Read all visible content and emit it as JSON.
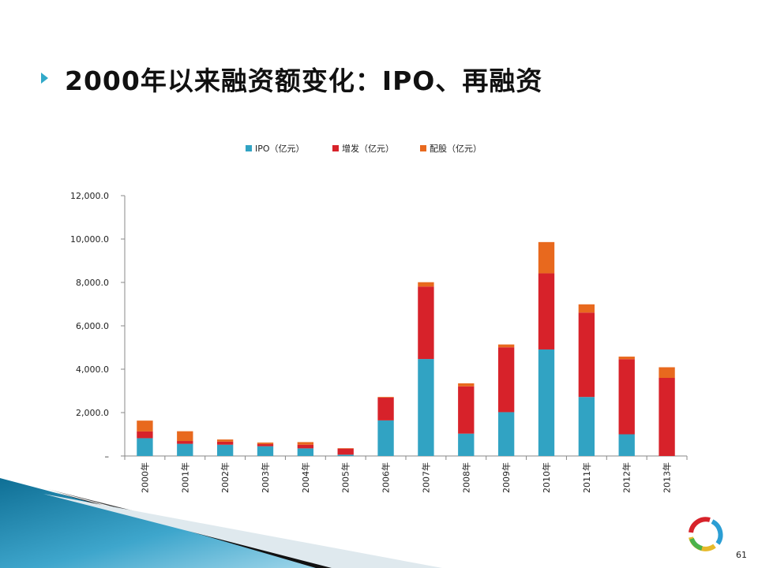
{
  "slide": {
    "title": "2000年以来融资额变化：IPO、再融资",
    "page_number": "61"
  },
  "colors": {
    "ipo": "#31a3c3",
    "additional_issue": "#d7222a",
    "rights_issue": "#e8691e",
    "accent": "#31a9c9"
  },
  "chart_data": {
    "type": "bar",
    "stacked": true,
    "categories": [
      "2000年",
      "2001年",
      "2002年",
      "2003年",
      "2004年",
      "2005年",
      "2006年",
      "2007年",
      "2008年",
      "2009年",
      "2010年",
      "2011年",
      "2012年",
      "2013年"
    ],
    "series": [
      {
        "name": "IPO（亿元）",
        "color": "#31a3c3",
        "values": [
          820,
          560,
          520,
          450,
          350,
          60,
          1640,
          4470,
          1030,
          2020,
          4910,
          2720,
          1000,
          0
        ]
      },
      {
        "name": "增发（亿元）",
        "color": "#d7222a",
        "values": [
          310,
          130,
          140,
          100,
          170,
          280,
          1050,
          3340,
          2180,
          2990,
          3510,
          3890,
          3460,
          3600
        ]
      },
      {
        "name": "配股（亿元）",
        "color": "#e8691e",
        "values": [
          500,
          450,
          100,
          70,
          120,
          20,
          30,
          200,
          140,
          130,
          1440,
          380,
          120,
          490
        ]
      }
    ],
    "yticks": [
      "–",
      "2,000.0",
      "4,000.0",
      "6,000.0",
      "8,000.0",
      "10,000.0",
      "12,000.0"
    ],
    "ylim": [
      0,
      12000
    ],
    "xlabel": "",
    "ylabel": "",
    "grid": false,
    "legend_position": "top"
  }
}
